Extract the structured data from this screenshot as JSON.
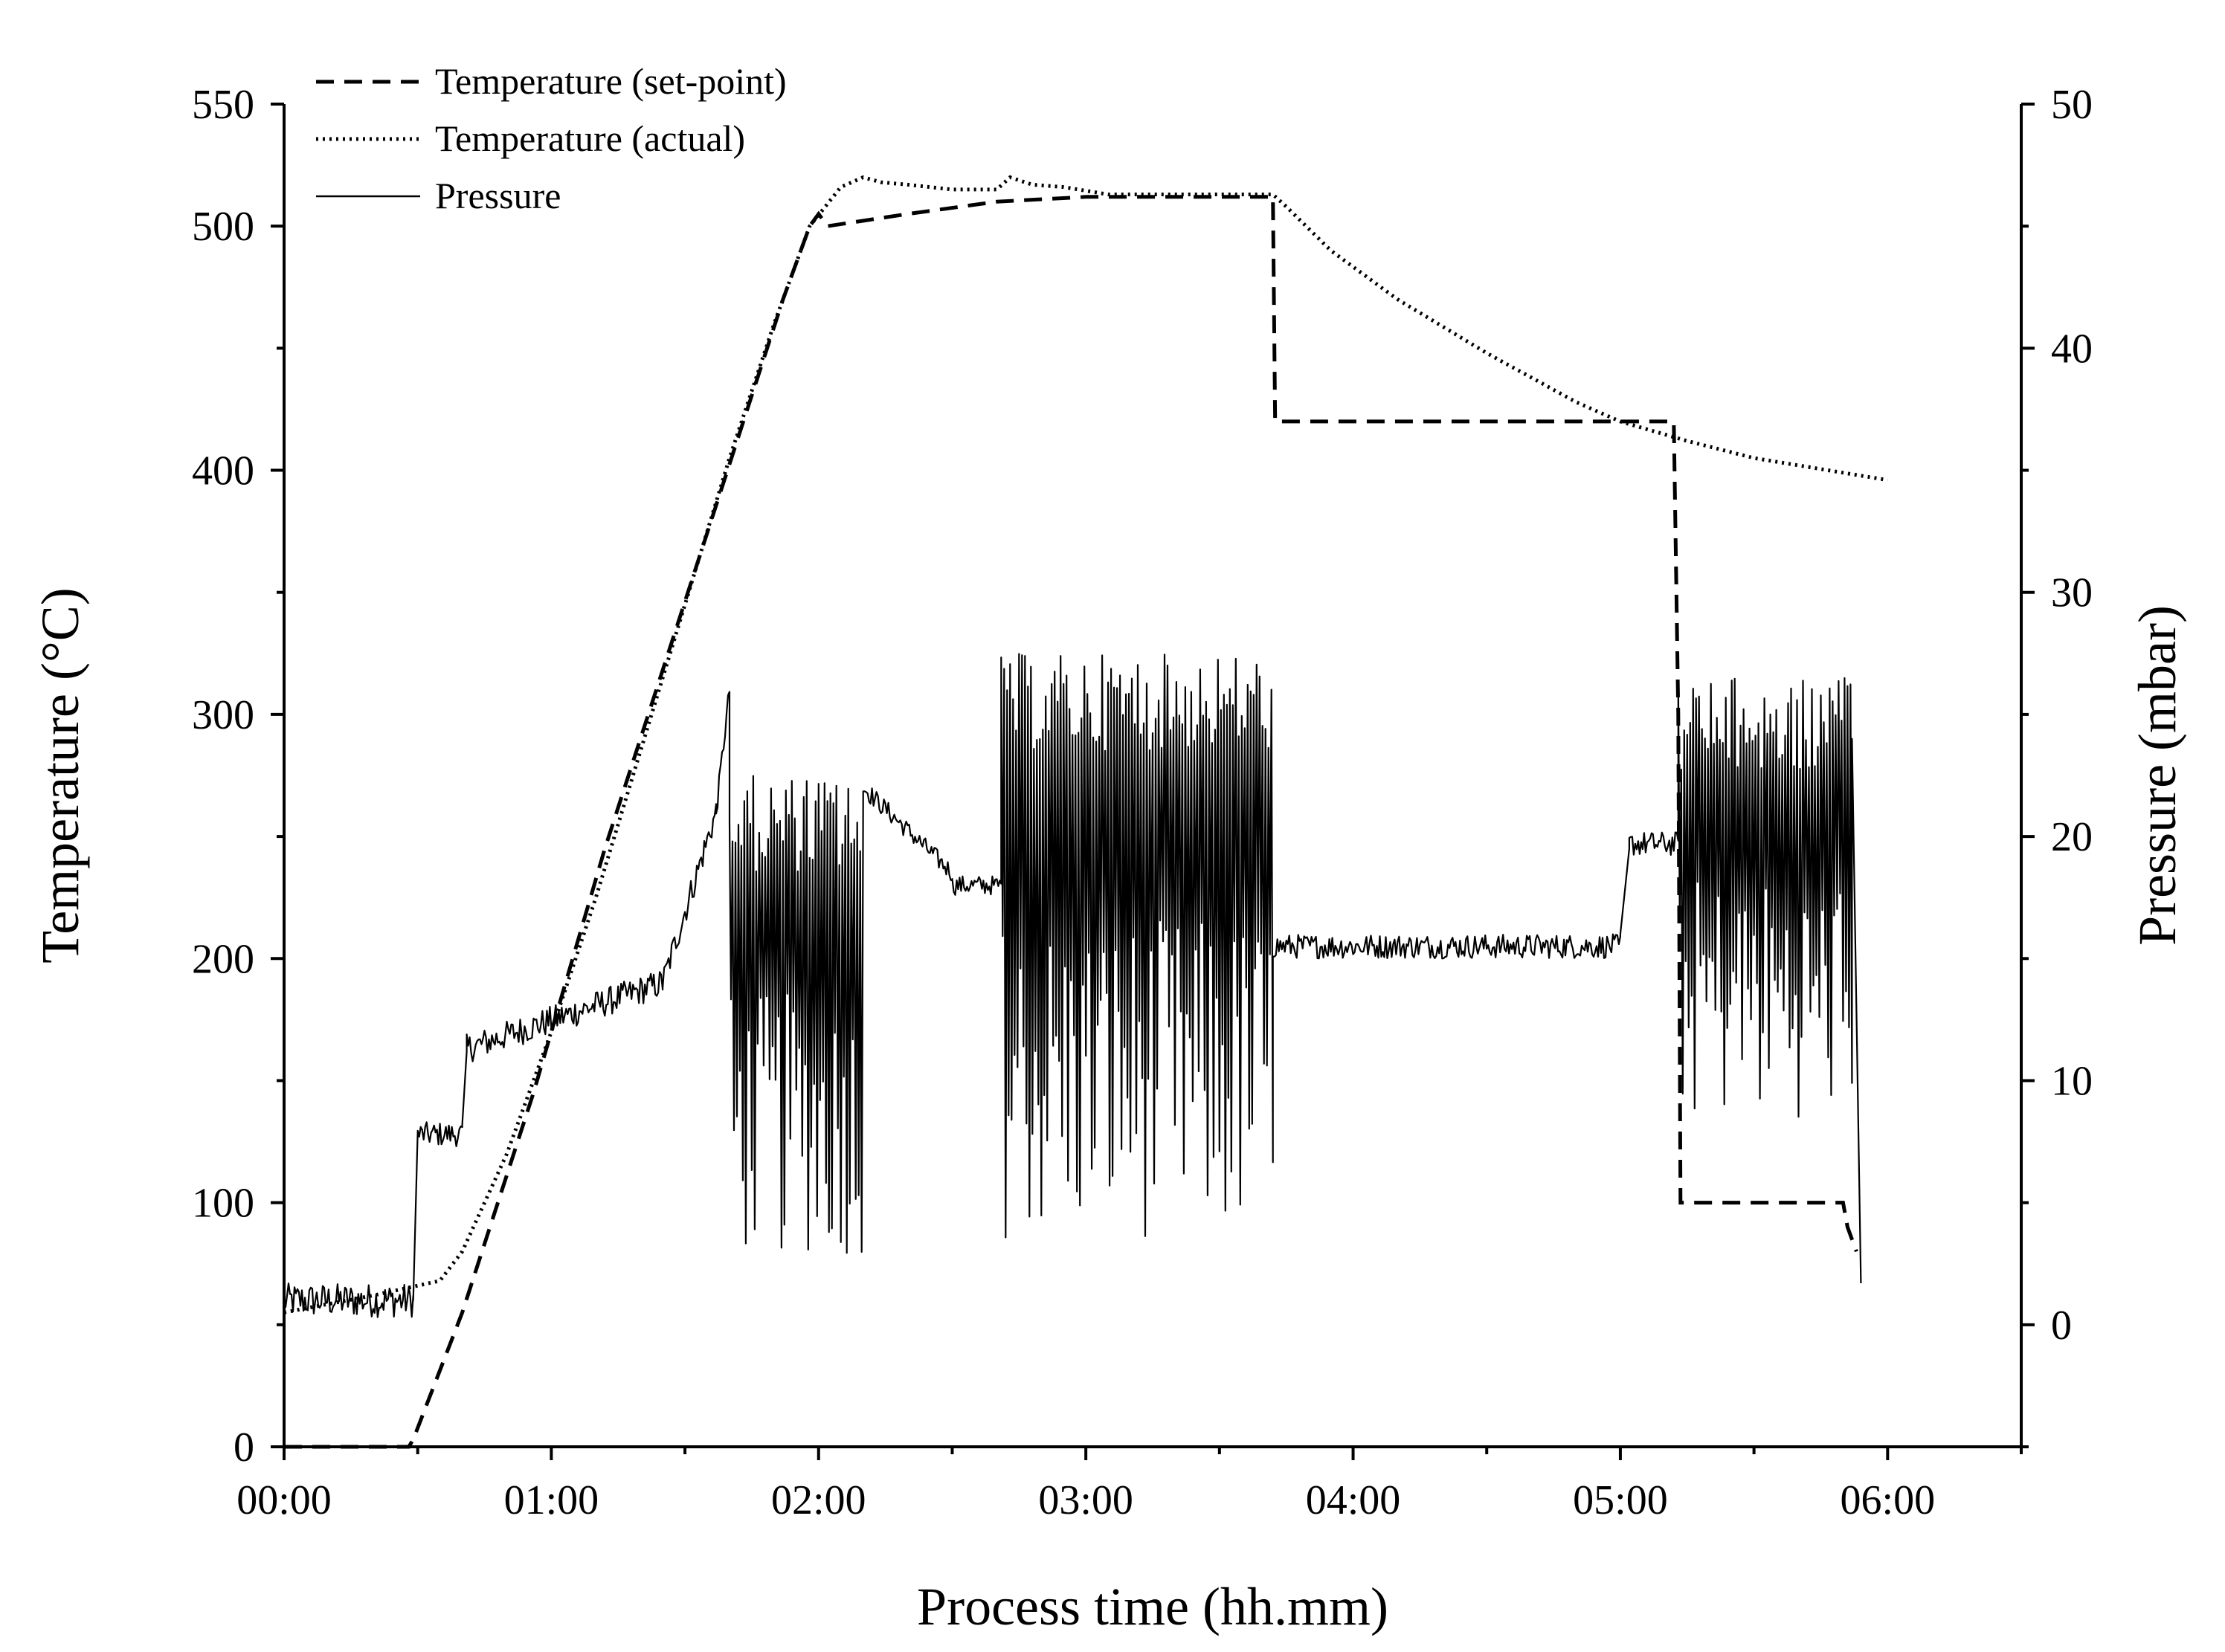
{
  "chart_data": {
    "type": "line",
    "title": "",
    "xlabel": "Process time (hh.mm)",
    "ylabel": "Temperature (°C)",
    "y2label": "Pressure (mbar)",
    "xlim": [
      0,
      390
    ],
    "ylim": [
      0,
      550
    ],
    "y2lim": [
      -5,
      50
    ],
    "x_ticks": [
      0,
      60,
      120,
      180,
      240,
      300,
      360
    ],
    "x_tick_labels": [
      "00:00",
      "01:00",
      "02:00",
      "03:00",
      "04:00",
      "05:00",
      "06:00"
    ],
    "y_ticks": [
      0,
      100,
      200,
      300,
      400,
      500,
      550
    ],
    "y_tick_labels": [
      "0",
      "100",
      "200",
      "300",
      "400",
      "500",
      "550"
    ],
    "y2_ticks": [
      0,
      10,
      20,
      30,
      40,
      50
    ],
    "y2_tick_labels": [
      "0",
      "10",
      "20",
      "30",
      "40",
      "50"
    ],
    "legend_position": "top-left",
    "series": [
      {
        "name": "Temperature (set-point)",
        "style": "dashed",
        "axis": "left",
        "x": [
          0,
          28,
          29,
          40,
          48,
          56,
          64,
          72,
          80,
          88,
          96,
          104,
          112,
          118,
          120,
          122,
          140,
          160,
          180,
          200,
          220,
          222,
          222.5,
          300,
          312,
          313,
          313.5,
          350,
          351,
          353
        ],
        "y": [
          0,
          0,
          3,
          55,
          100,
          145,
          195,
          245,
          290,
          335,
          380,
          425,
          470,
          500,
          505,
          500,
          505,
          510,
          512,
          512,
          512,
          512,
          420,
          420,
          420,
          300,
          100,
          100,
          90,
          80
        ]
      },
      {
        "name": "Temperature (actual)",
        "style": "dotted",
        "axis": "left",
        "x": [
          0,
          20,
          35,
          40,
          50,
          60,
          70,
          80,
          90,
          100,
          110,
          118,
          125,
          130,
          134,
          140,
          150,
          160,
          163,
          168,
          175,
          185,
          200,
          222,
          225,
          235,
          250,
          270,
          290,
          300,
          315,
          330,
          360
        ],
        "y": [
          55,
          62,
          68,
          80,
          120,
          170,
          225,
          285,
          345,
          405,
          460,
          500,
          516,
          520,
          518,
          517,
          515,
          515,
          520,
          517,
          516,
          513,
          513,
          513,
          508,
          490,
          470,
          448,
          428,
          420,
          412,
          405,
          396
        ]
      },
      {
        "name": "Pressure",
        "style": "solid",
        "axis": "right",
        "segments": [
          {
            "kind": "noisy",
            "x_start": 0,
            "x_end": 29,
            "base": 1.0,
            "noise": 0.7
          },
          {
            "kind": "step",
            "x_start": 29,
            "x_end": 30,
            "from": 1.0,
            "to": 7.9
          },
          {
            "kind": "noisy",
            "x_start": 30,
            "x_end": 40,
            "base": 7.8,
            "noise": 0.5
          },
          {
            "kind": "step",
            "x_start": 40,
            "x_end": 41,
            "from": 8.2,
            "to": 11.2
          },
          {
            "kind": "ramp",
            "x_start": 41,
            "x_end": 85,
            "from": 11.3,
            "to": 14.0,
            "noise": 0.6
          },
          {
            "kind": "ramp",
            "x_start": 85,
            "x_end": 97,
            "from": 14.0,
            "to": 21.0,
            "noise": 0.6
          },
          {
            "kind": "ramp",
            "x_start": 97,
            "x_end": 100,
            "from": 21.0,
            "to": 26.0,
            "noise": 0.4
          },
          {
            "kind": "bursts",
            "x_start": 100,
            "x_end": 130,
            "low": 2.8,
            "high": 22.5
          },
          {
            "kind": "decay",
            "x_start": 130,
            "x_end": 150,
            "from": 22.0,
            "to": 18.5,
            "noise": 0.4
          },
          {
            "kind": "noisy",
            "x_start": 150,
            "x_end": 161,
            "base": 18.0,
            "noise": 0.4
          },
          {
            "kind": "bursts",
            "x_start": 161,
            "x_end": 222,
            "low": 3.5,
            "high": 27.5
          },
          {
            "kind": "noisy",
            "x_start": 222,
            "x_end": 300,
            "base": 15.5,
            "noise": 0.5
          },
          {
            "kind": "step",
            "x_start": 300,
            "x_end": 302,
            "from": 16.0,
            "to": 19.5
          },
          {
            "kind": "noisy",
            "x_start": 302,
            "x_end": 313,
            "base": 19.7,
            "noise": 0.5
          },
          {
            "kind": "bursts",
            "x_start": 313,
            "x_end": 352,
            "low": 8.5,
            "high": 26.5
          },
          {
            "kind": "drop",
            "x_start": 352,
            "x_end": 354,
            "from": 24.0,
            "to": 1.7
          }
        ]
      }
    ]
  }
}
